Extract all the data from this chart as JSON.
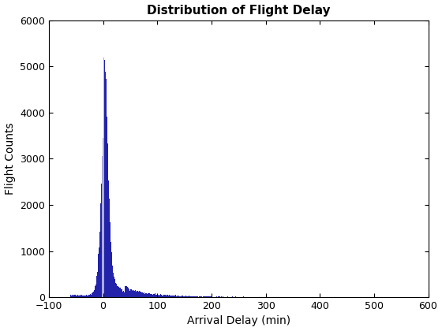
{
  "title": "Distribution of Flight Delay",
  "xlabel": "Arrival Delay (min)",
  "ylabel": "Flight Counts",
  "xlim": [
    -100,
    600
  ],
  "ylim": [
    0,
    6000
  ],
  "xticks": [
    -100,
    0,
    100,
    200,
    300,
    400,
    500,
    600
  ],
  "yticks": [
    0,
    1000,
    2000,
    3000,
    4000,
    5000,
    6000
  ],
  "bar_color": "#2222AA",
  "bar_color_light": "#AAAADD",
  "background_color": "#ffffff",
  "title_fontsize": 11,
  "label_fontsize": 10,
  "figsize": [
    5.6,
    4.2
  ],
  "dpi": 100
}
